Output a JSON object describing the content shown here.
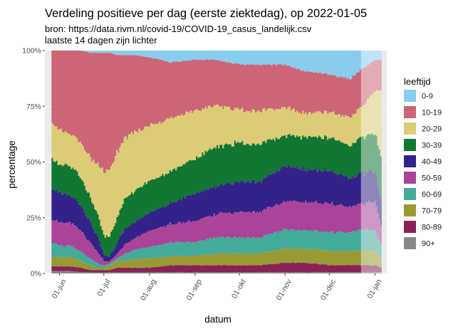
{
  "chart_data": {
    "type": "area",
    "stacked": true,
    "normalized": true,
    "title": "Verdeling positieve per dag (eerste ziektedag), op 2022-01-05",
    "subtitle_lines": [
      "bron: https://data.rivm.nl/covid-19/COVID-19_casus_landelijk.csv",
      "laatste 14 dagen zijn lichter"
    ],
    "xlabel": "datum",
    "ylabel": "percentage",
    "x_start": "2021-05-27",
    "x_end": "2022-01-05",
    "xlim": [
      "2021-05-22",
      "2022-01-09"
    ],
    "ylim": [
      0,
      100
    ],
    "x_ticks": [
      "01-jun",
      "01-jul",
      "01-aug",
      "01-sep",
      "01-okt",
      "01-nov",
      "01-dec",
      "01-jan"
    ],
    "x_tick_dates": [
      "2021-06-01",
      "2021-07-01",
      "2021-08-01",
      "2021-09-01",
      "2021-10-01",
      "2021-11-01",
      "2021-12-01",
      "2022-01-01"
    ],
    "y_ticks": [
      "0%",
      "25%",
      "50%",
      "75%",
      "100%"
    ],
    "y_tick_values": [
      0,
      25,
      50,
      75,
      100
    ],
    "lighter_from": "2021-12-23",
    "grid": true,
    "legend": {
      "title": "leeftijd",
      "position": "right"
    },
    "colors": {
      "panel_background": "#ebebeb",
      "grid_major": "#ffffff",
      "grid_minor": "#f2f2f2",
      "highlight_overlay": "#ffffff"
    },
    "dates": [
      "2021-05-27",
      "2021-06-01",
      "2021-06-08",
      "2021-06-15",
      "2021-06-22",
      "2021-06-27",
      "2021-07-01",
      "2021-07-05",
      "2021-07-10",
      "2021-07-15",
      "2021-07-22",
      "2021-08-01",
      "2021-08-15",
      "2021-09-01",
      "2021-09-15",
      "2021-10-01",
      "2021-10-15",
      "2021-11-01",
      "2021-11-15",
      "2021-12-01",
      "2021-12-15",
      "2021-12-23",
      "2022-01-01",
      "2022-01-05"
    ],
    "series": [
      {
        "name": "0-9",
        "color": "#88ccee",
        "values": [
          0,
          0,
          0,
          0,
          1,
          1,
          1,
          1,
          2,
          2,
          2,
          3,
          5,
          4,
          4,
          6,
          6,
          6,
          9,
          10,
          12,
          8,
          4,
          4
        ]
      },
      {
        "name": "10-19",
        "color": "#cc6677",
        "values": [
          32,
          34,
          35,
          40,
          46,
          50,
          54,
          52,
          43,
          37,
          34,
          30,
          24,
          22,
          20,
          20,
          20,
          18,
          18,
          16,
          16,
          16,
          13,
          13
        ]
      },
      {
        "name": "20-29",
        "color": "#ddcc77",
        "values": [
          15,
          15,
          14,
          15,
          18,
          22,
          28,
          30,
          29,
          27,
          26,
          24,
          23,
          21,
          18,
          14,
          14,
          12,
          10,
          11,
          12,
          13,
          18,
          27
        ]
      },
      {
        "name": "30-39",
        "color": "#117733",
        "values": [
          13,
          12,
          13,
          12,
          11,
          10,
          8,
          9,
          11,
          13,
          14,
          14,
          14,
          15,
          17,
          17,
          16,
          13,
          14,
          14,
          14,
          15,
          16,
          18
        ]
      },
      {
        "name": "40-49",
        "color": "#332288",
        "values": [
          13,
          13,
          12,
          11,
          9,
          7,
          3,
          2,
          5,
          7,
          7,
          8,
          9,
          12,
          12,
          13,
          13,
          15,
          14,
          14,
          12,
          13,
          13,
          12
        ]
      },
      {
        "name": "50-59",
        "color": "#aa4499",
        "values": [
          10,
          10,
          10,
          9,
          7,
          5,
          2,
          1,
          2,
          4,
          5,
          7,
          8,
          9,
          10,
          11,
          11,
          12,
          12,
          12,
          11,
          11,
          12,
          8
        ]
      },
      {
        "name": "60-69",
        "color": "#44aa99",
        "values": [
          6,
          5,
          5,
          4,
          3,
          2,
          1,
          1,
          1,
          3,
          4,
          5,
          6,
          6,
          7,
          7,
          7,
          8,
          8,
          8,
          8,
          9,
          9,
          6
        ]
      },
      {
        "name": "70-79",
        "color": "#999933",
        "values": [
          4,
          4,
          4,
          3,
          2,
          1,
          1,
          2,
          3,
          3,
          4,
          4,
          4,
          4,
          5,
          5,
          5,
          6,
          6,
          6,
          6,
          6,
          6,
          4
        ]
      },
      {
        "name": "80-89",
        "color": "#882255",
        "values": [
          2,
          2,
          2,
          2,
          1,
          1,
          1,
          1,
          2,
          2,
          2,
          2,
          3,
          3,
          3,
          3,
          3,
          4,
          4,
          3,
          3,
          3,
          3,
          2
        ]
      },
      {
        "name": "90+",
        "color": "#888888",
        "values": [
          1,
          1,
          1,
          0.5,
          0.5,
          0.5,
          0.5,
          0.5,
          0.5,
          0.5,
          0.5,
          0.5,
          0.5,
          0.5,
          0.5,
          0.5,
          0.5,
          0.5,
          0.5,
          0.5,
          0.5,
          0.5,
          0.5,
          0.5
        ]
      }
    ]
  }
}
